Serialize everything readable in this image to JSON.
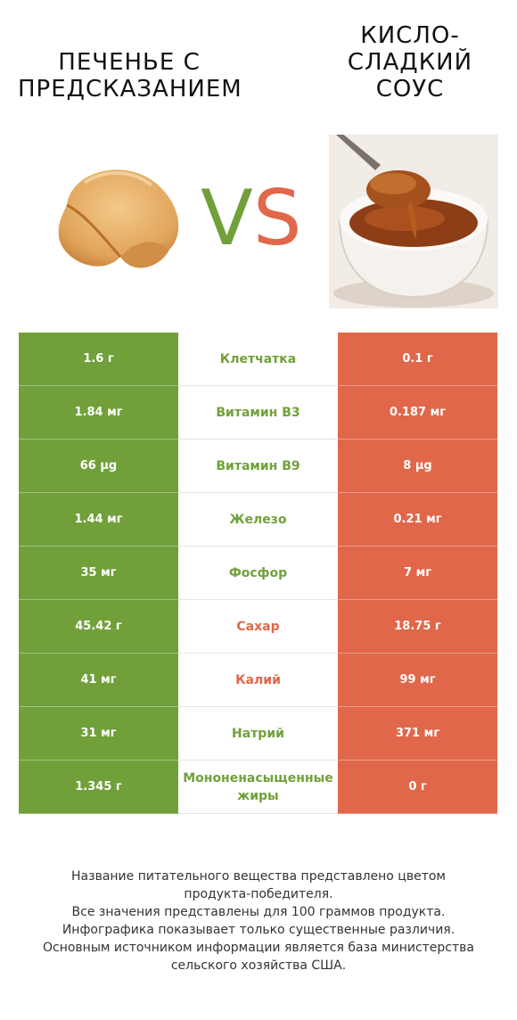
{
  "header": {
    "left_title": "ПЕЧЕНЬЕ С ПРЕДСКАЗАНИЕМ",
    "right_title": "КИСЛО-СЛАДКИЙ СОУС",
    "vs_v": "V",
    "vs_s": "S"
  },
  "colors": {
    "left_winner": "#71a03a",
    "right_winner": "#e0674a"
  },
  "rows": [
    {
      "left": "1.6 г",
      "name": "Клетчатка",
      "right": "0.1 г",
      "winner": "left"
    },
    {
      "left": "1.84 мг",
      "name": "Витамин B3",
      "right": "0.187 мг",
      "winner": "left"
    },
    {
      "left": "66 µg",
      "name": "Витамин B9",
      "right": "8 µg",
      "winner": "left"
    },
    {
      "left": "1.44 мг",
      "name": "Железо",
      "right": "0.21 мг",
      "winner": "left"
    },
    {
      "left": "35 мг",
      "name": "Фосфор",
      "right": "7 мг",
      "winner": "left"
    },
    {
      "left": "45.42 г",
      "name": "Сахар",
      "right": "18.75 г",
      "winner": "right"
    },
    {
      "left": "41 мг",
      "name": "Калий",
      "right": "99 мг",
      "winner": "right"
    },
    {
      "left": "31 мг",
      "name": "Натрий",
      "right": "371 мг",
      "winner": "left"
    },
    {
      "left": "1.345 г",
      "name": "Мононенасыщенные жиры",
      "right": "0 г",
      "winner": "left"
    }
  ],
  "footer": {
    "line1": "Название питательного вещества представлено цветом",
    "line2": "продукта-победителя.",
    "line3": "Все значения представлены для 100 граммов продукта.",
    "line4": "Инфографика показывает только существенные различия.",
    "line5": "Основным источником информации является база министерства",
    "line6": "сельского хозяйства США."
  }
}
